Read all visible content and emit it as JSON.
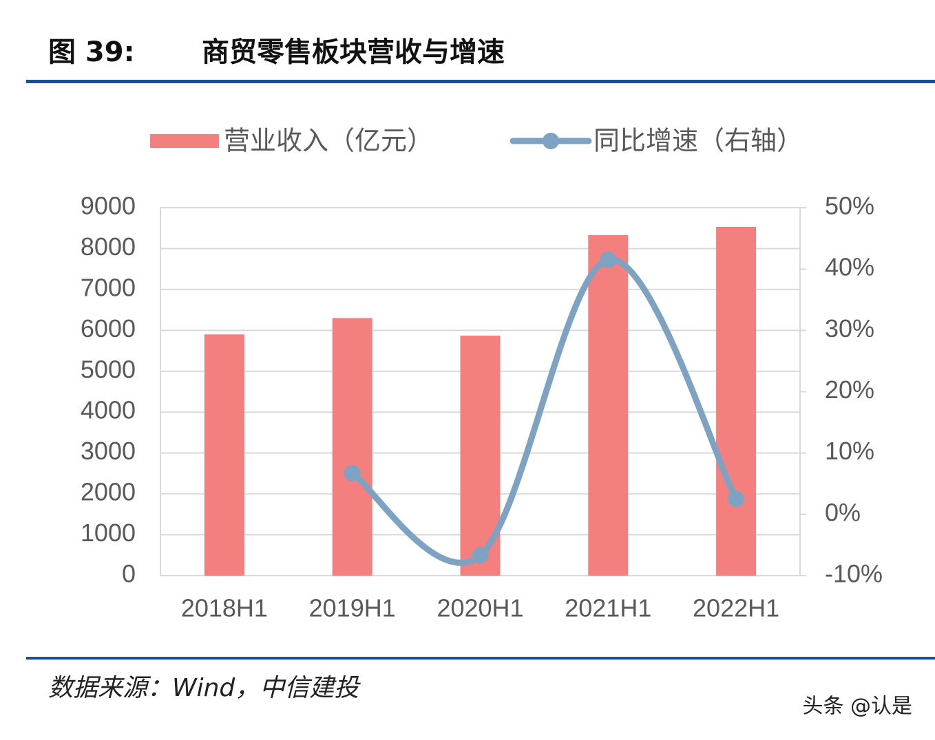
{
  "header": {
    "label": "图 39:",
    "title": "商贸零售板块营收与增速"
  },
  "chart_data": {
    "type": "bar-line",
    "categories": [
      "2018H1",
      "2019H1",
      "2020H1",
      "2021H1",
      "2022H1"
    ],
    "series": [
      {
        "name": "营业收入（亿元）",
        "color": "#f47f7f",
        "type": "bar",
        "values": [
          5900,
          6300,
          5870,
          8330,
          8530
        ]
      },
      {
        "name": "同比增速（右轴）",
        "color": "#7ea3c2",
        "type": "line",
        "axis": "y2",
        "values": [
          null,
          6.7,
          -6.7,
          41.5,
          2.5
        ]
      }
    ],
    "ylim": [
      0,
      9000
    ],
    "yticks": [
      0,
      1000,
      2000,
      3000,
      4000,
      5000,
      6000,
      7000,
      8000,
      9000
    ],
    "y2lim": [
      -10,
      50
    ],
    "y2ticks": [
      {
        "value": -10,
        "label": "-10%"
      },
      {
        "value": 0,
        "label": "0%"
      },
      {
        "value": 10,
        "label": "10%"
      },
      {
        "value": 20,
        "label": "20%"
      },
      {
        "value": 30,
        "label": "30%"
      },
      {
        "value": 40,
        "label": "40%"
      },
      {
        "value": 50,
        "label": "50%"
      }
    ],
    "grid": true,
    "legend": "top"
  },
  "footer": {
    "source": "数据来源：Wind，中信建投",
    "watermark": "头条 @认是"
  }
}
